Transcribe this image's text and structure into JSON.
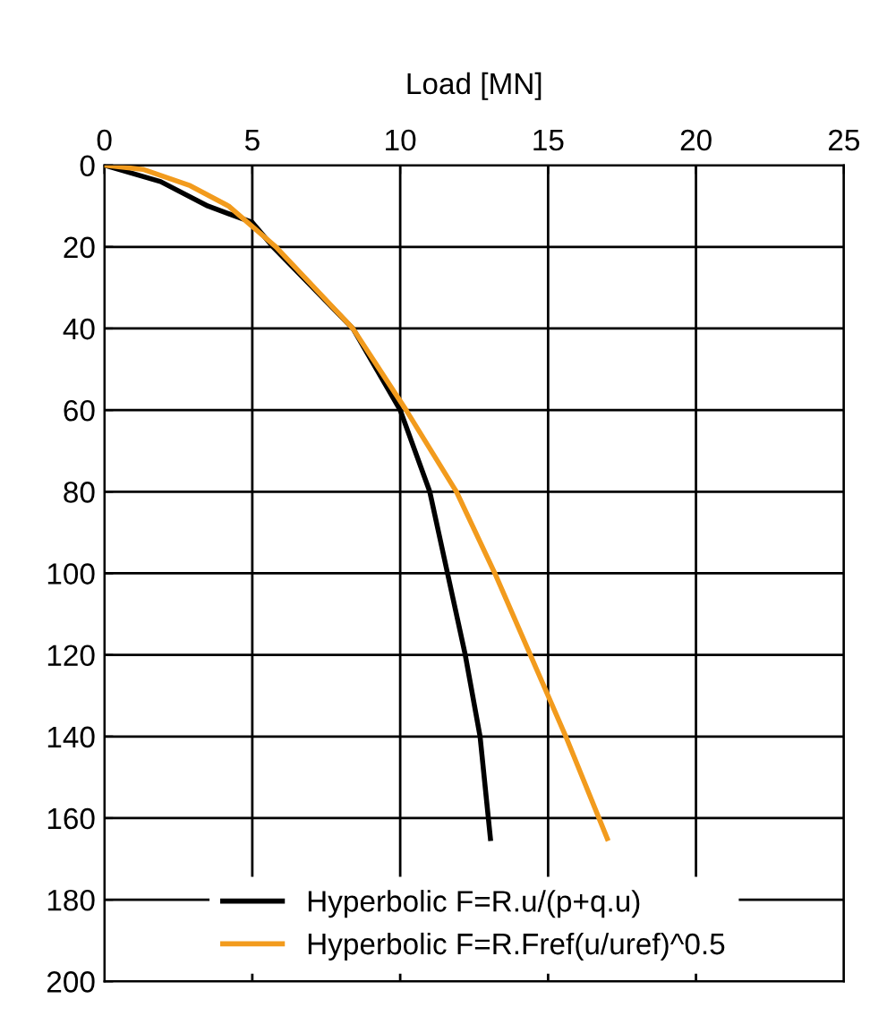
{
  "chart_data": {
    "type": "line",
    "xlabel": "Load [MN]",
    "xlim": [
      0,
      25
    ],
    "xticks": [
      0,
      5,
      10,
      15,
      20,
      25
    ],
    "ylim": [
      200,
      0
    ],
    "yticks": [
      0,
      20,
      40,
      60,
      80,
      100,
      120,
      140,
      160,
      180,
      200
    ],
    "grid": true,
    "legend": "bottom",
    "marker": "none",
    "line_style": "solid",
    "series": [
      {
        "name": "Hyperbolic F=R.u/(p+q.u)",
        "color": "#000000",
        "x": [
          0,
          1.9,
          3.5,
          5.0,
          5.7,
          8.4,
          10.0,
          11.0,
          11.6,
          12.2,
          12.7,
          13.05
        ],
        "values": [
          0,
          4,
          10,
          14,
          20,
          40,
          60,
          80,
          100,
          120,
          140,
          165
        ]
      },
      {
        "name": "Hyperbolic F=R.Fref(u/uref)^0.5",
        "color": "#f29b1d",
        "x": [
          0,
          1.3,
          2.9,
          4.2,
          5.8,
          8.4,
          10.2,
          11.9,
          13.2,
          14.4,
          15.6,
          17.0
        ],
        "values": [
          0,
          1,
          5,
          10,
          20,
          40,
          60,
          80,
          100,
          120,
          140,
          165
        ]
      }
    ]
  }
}
